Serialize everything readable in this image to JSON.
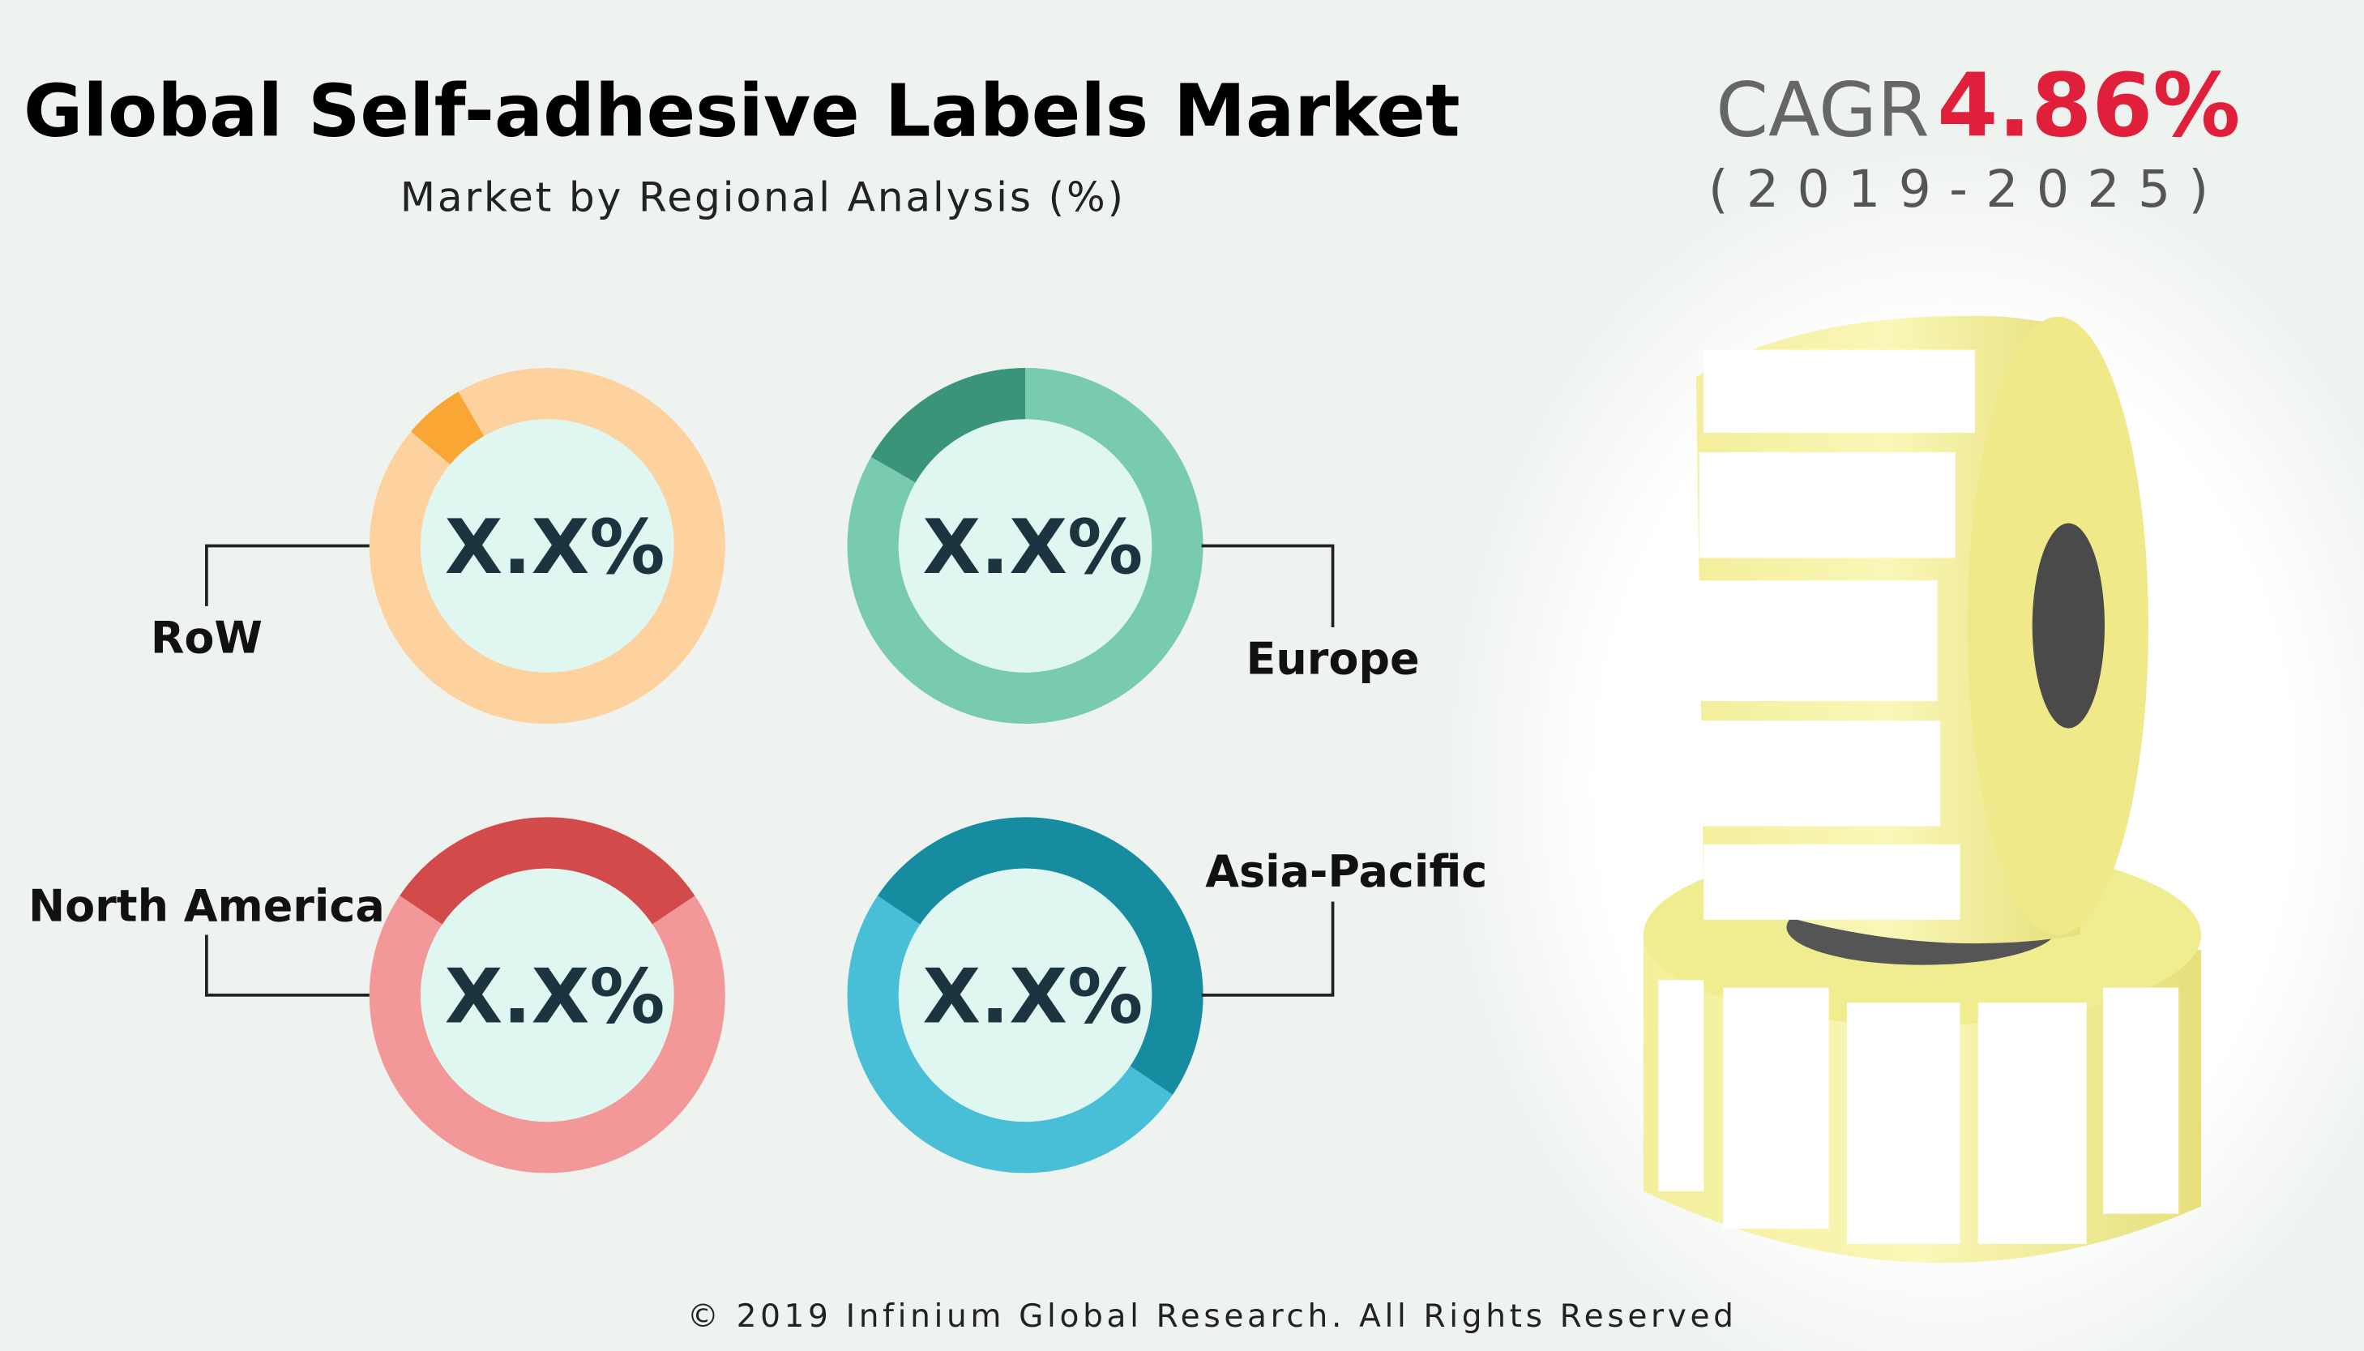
{
  "header": {
    "title": "Global Self-adhesive Labels Market",
    "subtitle": "Market by Regional Analysis (%)"
  },
  "cagr": {
    "label": "CAGR",
    "value": "4.86%",
    "period": "(2019-2025)"
  },
  "regions": [
    {
      "label": "RoW",
      "value": "X.X%"
    },
    {
      "label": "Europe",
      "value": "X.X%"
    },
    {
      "label": "North America",
      "value": "X.X%"
    },
    {
      "label": "Asia-Pacific",
      "value": "X.X%"
    }
  ],
  "footer": "© 2019 Infinium Global Research. All Rights Reserved"
}
